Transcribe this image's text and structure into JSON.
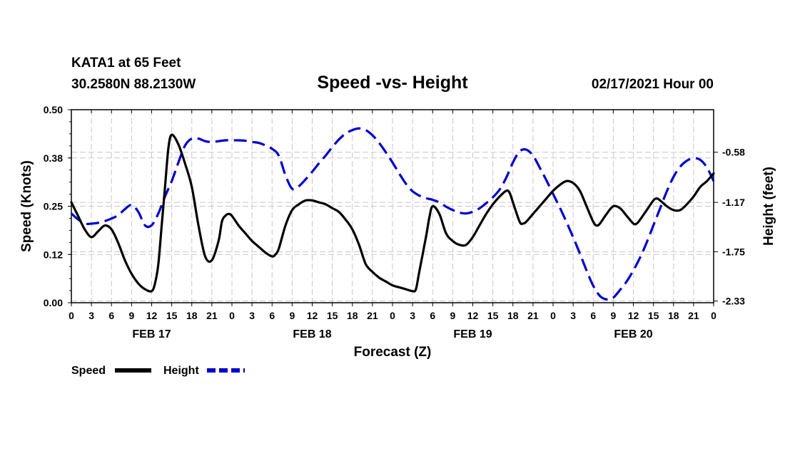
{
  "header": {
    "station": "KATA1 at 65 Feet",
    "coords": "30.2580N 88.2130W",
    "title": "Speed -vs- Height",
    "run": "02/17/2021 Hour 00"
  },
  "chart_data": {
    "type": "line",
    "title": "Speed -vs- Height",
    "xlabel": "Forecast (Z)",
    "ylabel_left": "Speed (Knots)",
    "ylabel_right": "Height (feet)",
    "x_range_hours": [
      0,
      96
    ],
    "x_tick_step_hours": 3,
    "x_tick_labels": [
      "0",
      "3",
      "6",
      "9",
      "12",
      "15",
      "18",
      "21",
      "0",
      "3",
      "6",
      "9",
      "12",
      "15",
      "18",
      "21",
      "0",
      "3",
      "6",
      "9",
      "12",
      "15",
      "18",
      "21",
      "0",
      "3",
      "6",
      "9",
      "12",
      "15",
      "18",
      "21",
      "0"
    ],
    "day_labels": [
      {
        "label": "FEB 17",
        "hour": 12
      },
      {
        "label": "FEB 18",
        "hour": 36
      },
      {
        "label": "FEB 19",
        "hour": 60
      },
      {
        "label": "FEB 20",
        "hour": 84
      }
    ],
    "y_left": {
      "range": [
        0,
        0.5
      ],
      "ticks": [
        0.0,
        0.125,
        0.25,
        0.375,
        0.5
      ],
      "tick_labels": [
        "0.00",
        "0.12",
        "0.25",
        "0.38",
        "0.50"
      ]
    },
    "y_right": {
      "range": [
        -2.35,
        -0.08
      ],
      "ticks": [
        -2.33,
        -1.75,
        -1.17,
        -0.58
      ],
      "tick_labels": [
        "-2.33",
        "-1.75",
        "-1.17",
        "-0.58"
      ]
    },
    "grid": true,
    "series": [
      {
        "name": "Speed",
        "axis": "left",
        "color": "#000000",
        "style": "solid",
        "points": [
          [
            0,
            0.26
          ],
          [
            1,
            0.225
          ],
          [
            2,
            0.19
          ],
          [
            3,
            0.17
          ],
          [
            4,
            0.185
          ],
          [
            5,
            0.2
          ],
          [
            6,
            0.19
          ],
          [
            7,
            0.155
          ],
          [
            8,
            0.11
          ],
          [
            9,
            0.075
          ],
          [
            10,
            0.05
          ],
          [
            11,
            0.035
          ],
          [
            12,
            0.03
          ],
          [
            12.5,
            0.05
          ],
          [
            13,
            0.1
          ],
          [
            13.5,
            0.2
          ],
          [
            14,
            0.3
          ],
          [
            14.5,
            0.4
          ],
          [
            15,
            0.435
          ],
          [
            16,
            0.41
          ],
          [
            17,
            0.36
          ],
          [
            18,
            0.3
          ],
          [
            19,
            0.2
          ],
          [
            20,
            0.12
          ],
          [
            21,
            0.11
          ],
          [
            22,
            0.16
          ],
          [
            22.5,
            0.21
          ],
          [
            23,
            0.225
          ],
          [
            23.5,
            0.23
          ],
          [
            24,
            0.225
          ],
          [
            25,
            0.2
          ],
          [
            26,
            0.18
          ],
          [
            27,
            0.16
          ],
          [
            28,
            0.145
          ],
          [
            29,
            0.13
          ],
          [
            30,
            0.12
          ],
          [
            30.5,
            0.125
          ],
          [
            31,
            0.14
          ],
          [
            32,
            0.2
          ],
          [
            33,
            0.24
          ],
          [
            34,
            0.255
          ],
          [
            35,
            0.265
          ],
          [
            36,
            0.265
          ],
          [
            37,
            0.26
          ],
          [
            38,
            0.255
          ],
          [
            39,
            0.245
          ],
          [
            40,
            0.235
          ],
          [
            41,
            0.215
          ],
          [
            42,
            0.19
          ],
          [
            43,
            0.15
          ],
          [
            44,
            0.1
          ],
          [
            45,
            0.08
          ],
          [
            46,
            0.065
          ],
          [
            47,
            0.055
          ],
          [
            48,
            0.045
          ],
          [
            49,
            0.04
          ],
          [
            50,
            0.035
          ],
          [
            51,
            0.03
          ],
          [
            51.5,
            0.035
          ],
          [
            52,
            0.08
          ],
          [
            53,
            0.17
          ],
          [
            53.5,
            0.22
          ],
          [
            54,
            0.25
          ],
          [
            55,
            0.23
          ],
          [
            56,
            0.18
          ],
          [
            57,
            0.16
          ],
          [
            58,
            0.15
          ],
          [
            59,
            0.15
          ],
          [
            60,
            0.17
          ],
          [
            61,
            0.2
          ],
          [
            62,
            0.23
          ],
          [
            63,
            0.255
          ],
          [
            64,
            0.275
          ],
          [
            65,
            0.29
          ],
          [
            65.5,
            0.285
          ],
          [
            66,
            0.26
          ],
          [
            67,
            0.21
          ],
          [
            67.5,
            0.205
          ],
          [
            68,
            0.21
          ],
          [
            69,
            0.23
          ],
          [
            70,
            0.25
          ],
          [
            71,
            0.27
          ],
          [
            72,
            0.29
          ],
          [
            73,
            0.305
          ],
          [
            74,
            0.315
          ],
          [
            75,
            0.31
          ],
          [
            76,
            0.29
          ],
          [
            77,
            0.25
          ],
          [
            78,
            0.21
          ],
          [
            78.5,
            0.2
          ],
          [
            79,
            0.205
          ],
          [
            80,
            0.23
          ],
          [
            81,
            0.25
          ],
          [
            82,
            0.245
          ],
          [
            83,
            0.225
          ],
          [
            84,
            0.205
          ],
          [
            84.5,
            0.205
          ],
          [
            85,
            0.215
          ],
          [
            86,
            0.24
          ],
          [
            87,
            0.265
          ],
          [
            87.5,
            0.27
          ],
          [
            88,
            0.265
          ],
          [
            89,
            0.25
          ],
          [
            90,
            0.24
          ],
          [
            91,
            0.24
          ],
          [
            92,
            0.255
          ],
          [
            93,
            0.275
          ],
          [
            94,
            0.3
          ],
          [
            95,
            0.315
          ],
          [
            96,
            0.335
          ]
        ]
      },
      {
        "name": "Height",
        "axis": "right",
        "color": "#0000cc",
        "style": "dashed",
        "points": [
          [
            0,
            -1.3
          ],
          [
            1,
            -1.37
          ],
          [
            2,
            -1.42
          ],
          [
            3,
            -1.42
          ],
          [
            4,
            -1.41
          ],
          [
            5,
            -1.39
          ],
          [
            6,
            -1.36
          ],
          [
            7,
            -1.32
          ],
          [
            8,
            -1.25
          ],
          [
            9,
            -1.2
          ],
          [
            10,
            -1.28
          ],
          [
            11,
            -1.44
          ],
          [
            12,
            -1.44
          ],
          [
            13,
            -1.3
          ],
          [
            14,
            -1.1
          ],
          [
            15,
            -0.92
          ],
          [
            16,
            -0.7
          ],
          [
            17,
            -0.5
          ],
          [
            18,
            -0.42
          ],
          [
            19,
            -0.42
          ],
          [
            20,
            -0.45
          ],
          [
            21,
            -0.46
          ],
          [
            22,
            -0.45
          ],
          [
            23,
            -0.44
          ],
          [
            24,
            -0.44
          ],
          [
            25,
            -0.44
          ],
          [
            26,
            -0.445
          ],
          [
            27,
            -0.46
          ],
          [
            28,
            -0.47
          ],
          [
            29,
            -0.5
          ],
          [
            30,
            -0.54
          ],
          [
            31,
            -0.62
          ],
          [
            32,
            -0.85
          ],
          [
            33,
            -1.01
          ],
          [
            34,
            -0.98
          ],
          [
            35,
            -0.9
          ],
          [
            36,
            -0.81
          ],
          [
            37,
            -0.71
          ],
          [
            38,
            -0.62
          ],
          [
            39,
            -0.52
          ],
          [
            40,
            -0.43
          ],
          [
            41,
            -0.36
          ],
          [
            42,
            -0.32
          ],
          [
            43,
            -0.3
          ],
          [
            44,
            -0.32
          ],
          [
            45,
            -0.38
          ],
          [
            46,
            -0.47
          ],
          [
            47,
            -0.58
          ],
          [
            48,
            -0.7
          ],
          [
            49,
            -0.83
          ],
          [
            50,
            -0.95
          ],
          [
            51,
            -1.04
          ],
          [
            52,
            -1.09
          ],
          [
            53,
            -1.12
          ],
          [
            54,
            -1.14
          ],
          [
            55,
            -1.17
          ],
          [
            56,
            -1.22
          ],
          [
            57,
            -1.26
          ],
          [
            58,
            -1.29
          ],
          [
            59,
            -1.3
          ],
          [
            60,
            -1.28
          ],
          [
            61,
            -1.24
          ],
          [
            62,
            -1.18
          ],
          [
            63,
            -1.11
          ],
          [
            64,
            -1.02
          ],
          [
            65,
            -0.88
          ],
          [
            66,
            -0.7
          ],
          [
            67,
            -0.57
          ],
          [
            68,
            -0.55
          ],
          [
            69,
            -0.62
          ],
          [
            70,
            -0.76
          ],
          [
            71,
            -0.91
          ],
          [
            72,
            -1.07
          ],
          [
            73,
            -1.23
          ],
          [
            74,
            -1.4
          ],
          [
            75,
            -1.58
          ],
          [
            76,
            -1.77
          ],
          [
            77,
            -1.97
          ],
          [
            78,
            -2.15
          ],
          [
            79,
            -2.27
          ],
          [
            80,
            -2.31
          ],
          [
            81,
            -2.29
          ],
          [
            82,
            -2.2
          ],
          [
            83,
            -2.1
          ],
          [
            84,
            -1.97
          ],
          [
            85,
            -1.82
          ],
          [
            86,
            -1.64
          ],
          [
            87,
            -1.44
          ],
          [
            88,
            -1.24
          ],
          [
            89,
            -1.04
          ],
          [
            90,
            -0.87
          ],
          [
            91,
            -0.75
          ],
          [
            92,
            -0.68
          ],
          [
            93,
            -0.65
          ],
          [
            94,
            -0.67
          ],
          [
            95,
            -0.76
          ],
          [
            96,
            -0.92
          ]
        ]
      }
    ]
  },
  "legend": {
    "speed_label": "Speed",
    "height_label": "Height"
  }
}
